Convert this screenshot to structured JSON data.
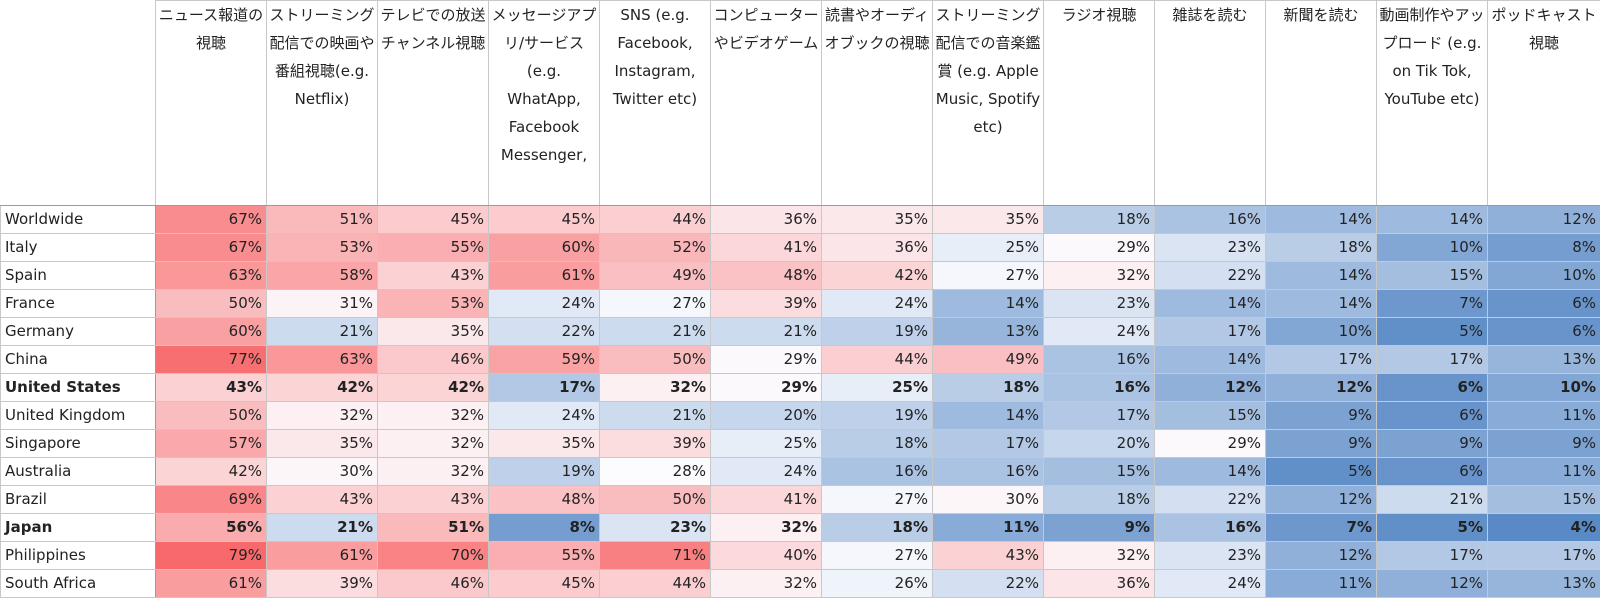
{
  "chart_data": {
    "type": "table",
    "corner": "",
    "columns": [
      "ニュース報道の視聴",
      "ストリーミング配信での映画や番組視聴(e.g. Netflix)",
      "テレビでの放送チャンネル視聴",
      "メッセージアプリ/サービス (e.g. WhatApp, Facebook Messenger,",
      "SNS (e.g. Facebook, Instagram, Twitter etc)",
      "コンピューターやビデオゲーム",
      "読書やオーディオブックの視聴",
      "ストリーミング配信での音楽鑑賞 (e.g. Apple Music, Spotify etc)",
      "ラジオ視聴",
      "雑誌を読む",
      "新聞を読む",
      "動画制作やアップロード (e.g. on Tik Tok, YouTube etc)",
      "ポッドキャスト視聴"
    ],
    "rows": [
      {
        "country": "Worldwide",
        "values": [
          67,
          51,
          45,
          45,
          44,
          36,
          35,
          35,
          18,
          16,
          14,
          14,
          12
        ]
      },
      {
        "country": "Italy",
        "values": [
          67,
          53,
          55,
          60,
          52,
          41,
          36,
          25,
          29,
          23,
          18,
          10,
          8
        ]
      },
      {
        "country": "Spain",
        "values": [
          63,
          58,
          43,
          61,
          49,
          48,
          42,
          27,
          32,
          22,
          14,
          15,
          10
        ]
      },
      {
        "country": "France",
        "values": [
          50,
          31,
          53,
          24,
          27,
          39,
          24,
          14,
          23,
          14,
          14,
          7,
          6
        ]
      },
      {
        "country": "Germany",
        "values": [
          60,
          21,
          35,
          22,
          21,
          21,
          19,
          13,
          24,
          17,
          10,
          5,
          6
        ]
      },
      {
        "country": "China",
        "values": [
          77,
          63,
          46,
          59,
          50,
          29,
          44,
          49,
          16,
          14,
          17,
          17,
          13
        ]
      },
      {
        "country": "United States",
        "bold": true,
        "values": [
          43,
          42,
          42,
          17,
          32,
          29,
          25,
          18,
          16,
          12,
          12,
          6,
          10
        ]
      },
      {
        "country": "United Kingdom",
        "values": [
          50,
          32,
          32,
          24,
          21,
          20,
          19,
          14,
          17,
          15,
          9,
          6,
          11
        ]
      },
      {
        "country": "Singapore",
        "values": [
          57,
          35,
          32,
          35,
          39,
          25,
          18,
          17,
          20,
          29,
          9,
          9,
          9
        ]
      },
      {
        "country": "Australia",
        "values": [
          42,
          30,
          32,
          19,
          28,
          24,
          16,
          16,
          15,
          14,
          5,
          6,
          11
        ]
      },
      {
        "country": "Brazil",
        "values": [
          69,
          43,
          43,
          48,
          50,
          41,
          27,
          30,
          18,
          22,
          12,
          21,
          15
        ]
      },
      {
        "country": "Japan",
        "bold": true,
        "values": [
          56,
          21,
          51,
          8,
          23,
          32,
          18,
          11,
          9,
          16,
          7,
          5,
          4
        ]
      },
      {
        "country": "Philippines",
        "values": [
          79,
          61,
          70,
          55,
          71,
          40,
          27,
          43,
          32,
          23,
          12,
          17,
          17
        ]
      },
      {
        "country": "South Africa",
        "values": [
          61,
          39,
          46,
          45,
          44,
          32,
          26,
          22,
          36,
          24,
          11,
          12,
          13
        ]
      }
    ],
    "value_suffix": "%",
    "color_scale": {
      "low": "#5a8ac6",
      "mid": "#fcfcff",
      "high": "#f8696b"
    }
  }
}
